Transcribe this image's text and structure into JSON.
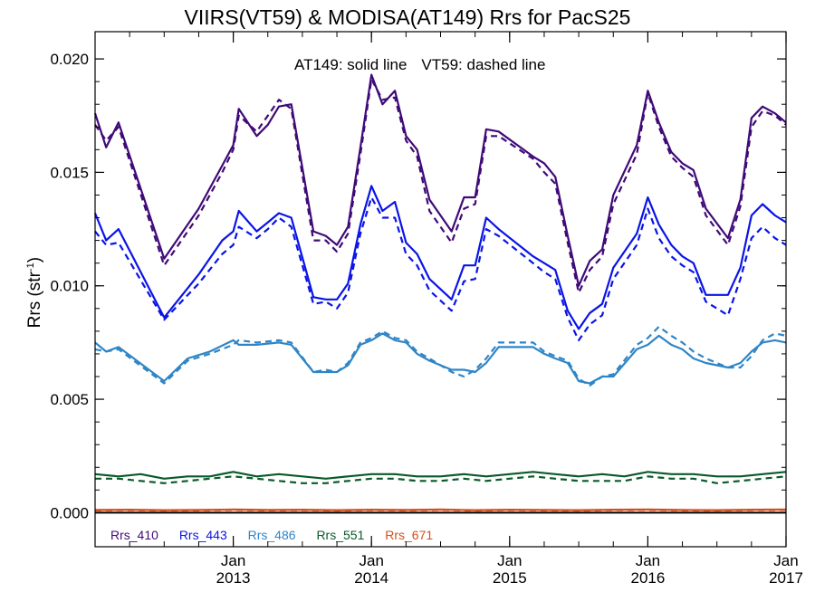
{
  "chart_data": {
    "type": "line",
    "title": "VIIRS(VT59) & MODISA(AT149)  Rrs for PacS25",
    "annotation": [
      "AT149: solid line",
      "VT59: dashed line"
    ],
    "ylabel": "Rrs (str",
    "ylabel_sup": "-1",
    "ylabel_close": ")",
    "ylim": [
      -0.0015,
      0.0212
    ],
    "xlim": [
      2012.0,
      2017.0
    ],
    "yticks": [
      0.0,
      0.005,
      0.01,
      0.015,
      0.02
    ],
    "ytick_labels": [
      "0.000",
      "0.005",
      "0.010",
      "0.015",
      "0.020"
    ],
    "xticks": [
      2013.0,
      2014.0,
      2015.0,
      2016.0,
      2017.0
    ],
    "xtick_labels": [
      [
        "Jan",
        "2013"
      ],
      [
        "Jan",
        "2014"
      ],
      [
        "Jan",
        "2015"
      ],
      [
        "Jan",
        "2016"
      ],
      [
        "Jan",
        "2017"
      ]
    ],
    "grid": false,
    "legend_position": "bottom-left",
    "series": [
      {
        "name": "Rrs_410",
        "color": "#3f0a78",
        "style": "solid",
        "x": [
          2012.0,
          2012.08,
          2012.17,
          2012.5,
          2012.75,
          2012.92,
          2013.0,
          2013.04,
          2013.17,
          2013.25,
          2013.33,
          2013.42,
          2013.58,
          2013.67,
          2013.75,
          2013.83,
          2013.92,
          2014.0,
          2014.08,
          2014.17,
          2014.25,
          2014.33,
          2014.42,
          2014.58,
          2014.67,
          2014.75,
          2014.83,
          2014.92,
          2015.17,
          2015.25,
          2015.33,
          2015.42,
          2015.5,
          2015.58,
          2015.67,
          2015.75,
          2015.92,
          2016.0,
          2016.08,
          2016.17,
          2016.25,
          2016.33,
          2016.42,
          2016.58,
          2016.67,
          2016.75,
          2016.83,
          2016.92,
          2017.0
        ],
        "y": [
          0.0176,
          0.0161,
          0.0172,
          0.0112,
          0.0134,
          0.0153,
          0.0162,
          0.0178,
          0.0166,
          0.0171,
          0.0179,
          0.018,
          0.0124,
          0.0122,
          0.0118,
          0.0126,
          0.0161,
          0.0193,
          0.018,
          0.0186,
          0.0166,
          0.016,
          0.0138,
          0.0124,
          0.0139,
          0.0139,
          0.0169,
          0.0168,
          0.0157,
          0.0154,
          0.0148,
          0.0122,
          0.01,
          0.0111,
          0.0116,
          0.014,
          0.0162,
          0.0186,
          0.0172,
          0.0159,
          0.0154,
          0.0151,
          0.0134,
          0.0121,
          0.0138,
          0.0174,
          0.0179,
          0.0176,
          0.0172
        ]
      },
      {
        "name": "Rrs_410_VT59",
        "color": "#3f0a78",
        "style": "dashed",
        "x": [
          2012.0,
          2012.08,
          2012.17,
          2012.5,
          2012.75,
          2012.92,
          2013.0,
          2013.04,
          2013.17,
          2013.25,
          2013.33,
          2013.42,
          2013.58,
          2013.67,
          2013.75,
          2013.83,
          2013.92,
          2014.0,
          2014.08,
          2014.17,
          2014.25,
          2014.33,
          2014.42,
          2014.58,
          2014.67,
          2014.75,
          2014.83,
          2014.92,
          2015.17,
          2015.25,
          2015.33,
          2015.42,
          2015.5,
          2015.58,
          2015.67,
          2015.75,
          2015.92,
          2016.0,
          2016.08,
          2016.17,
          2016.25,
          2016.33,
          2016.42,
          2016.58,
          2016.67,
          2016.75,
          2016.83,
          2016.92,
          2017.0
        ],
        "y": [
          0.0171,
          0.0164,
          0.017,
          0.0109,
          0.0131,
          0.015,
          0.016,
          0.0175,
          0.0168,
          0.0175,
          0.0182,
          0.0178,
          0.012,
          0.012,
          0.0115,
          0.0123,
          0.0158,
          0.0191,
          0.0182,
          0.0183,
          0.0164,
          0.0157,
          0.0133,
          0.0119,
          0.0134,
          0.0136,
          0.0166,
          0.0166,
          0.0156,
          0.015,
          0.0145,
          0.0119,
          0.0097,
          0.0107,
          0.0113,
          0.0136,
          0.0158,
          0.0185,
          0.017,
          0.0157,
          0.0152,
          0.0148,
          0.0131,
          0.0118,
          0.0135,
          0.017,
          0.0177,
          0.0175,
          0.0171
        ]
      },
      {
        "name": "Rrs_443",
        "color": "#0a14e6",
        "style": "solid",
        "x": [
          2012.0,
          2012.08,
          2012.17,
          2012.5,
          2012.75,
          2012.92,
          2013.0,
          2013.04,
          2013.17,
          2013.25,
          2013.33,
          2013.42,
          2013.58,
          2013.67,
          2013.75,
          2013.83,
          2013.92,
          2014.0,
          2014.08,
          2014.17,
          2014.25,
          2014.33,
          2014.42,
          2014.58,
          2014.67,
          2014.75,
          2014.83,
          2014.92,
          2015.17,
          2015.25,
          2015.33,
          2015.42,
          2015.5,
          2015.58,
          2015.67,
          2015.75,
          2015.92,
          2016.0,
          2016.08,
          2016.17,
          2016.25,
          2016.33,
          2016.42,
          2016.58,
          2016.67,
          2016.75,
          2016.83,
          2016.92,
          2017.0
        ],
        "y": [
          0.0132,
          0.012,
          0.0125,
          0.0086,
          0.0105,
          0.012,
          0.0124,
          0.0133,
          0.0124,
          0.0128,
          0.0132,
          0.013,
          0.0095,
          0.0094,
          0.0094,
          0.0101,
          0.0127,
          0.0144,
          0.0133,
          0.0137,
          0.0119,
          0.0114,
          0.0103,
          0.0094,
          0.0109,
          0.0109,
          0.013,
          0.0125,
          0.0113,
          0.011,
          0.0107,
          0.0089,
          0.0081,
          0.0088,
          0.0092,
          0.0108,
          0.0123,
          0.0139,
          0.0127,
          0.0118,
          0.0113,
          0.011,
          0.0096,
          0.0096,
          0.0108,
          0.0131,
          0.0136,
          0.0131,
          0.0128
        ]
      },
      {
        "name": "Rrs_443_VT59",
        "color": "#0a14e6",
        "style": "dashed",
        "x": [
          2012.0,
          2012.08,
          2012.17,
          2012.5,
          2012.75,
          2012.92,
          2013.0,
          2013.04,
          2013.17,
          2013.25,
          2013.33,
          2013.42,
          2013.58,
          2013.67,
          2013.75,
          2013.83,
          2013.92,
          2014.0,
          2014.08,
          2014.17,
          2014.25,
          2014.33,
          2014.42,
          2014.58,
          2014.67,
          2014.75,
          2014.83,
          2014.92,
          2015.17,
          2015.25,
          2015.33,
          2015.42,
          2015.5,
          2015.58,
          2015.67,
          2015.75,
          2015.92,
          2016.0,
          2016.08,
          2016.17,
          2016.25,
          2016.33,
          2016.42,
          2016.58,
          2016.67,
          2016.75,
          2016.83,
          2016.92,
          2017.0
        ],
        "y": [
          0.0124,
          0.0118,
          0.0119,
          0.0085,
          0.0101,
          0.0114,
          0.0118,
          0.0126,
          0.0121,
          0.0125,
          0.013,
          0.0126,
          0.0092,
          0.0093,
          0.009,
          0.0097,
          0.0123,
          0.0139,
          0.013,
          0.013,
          0.0114,
          0.0109,
          0.0098,
          0.0089,
          0.0102,
          0.0103,
          0.0125,
          0.0122,
          0.011,
          0.0106,
          0.0103,
          0.0086,
          0.0076,
          0.0083,
          0.0087,
          0.0103,
          0.0118,
          0.0134,
          0.0121,
          0.0113,
          0.0109,
          0.0106,
          0.0093,
          0.0087,
          0.0103,
          0.0121,
          0.0126,
          0.0121,
          0.0118
        ]
      },
      {
        "name": "Rrs_486",
        "color": "#2f85c6",
        "style": "solid",
        "x": [
          2012.0,
          2012.08,
          2012.17,
          2012.5,
          2012.67,
          2012.83,
          2013.0,
          2013.04,
          2013.17,
          2013.33,
          2013.42,
          2013.58,
          2013.67,
          2013.75,
          2013.83,
          2013.92,
          2014.0,
          2014.08,
          2014.17,
          2014.25,
          2014.33,
          2014.42,
          2014.58,
          2014.67,
          2014.75,
          2014.83,
          2014.92,
          2015.17,
          2015.25,
          2015.33,
          2015.42,
          2015.5,
          2015.58,
          2015.67,
          2015.75,
          2015.92,
          2016.0,
          2016.08,
          2016.17,
          2016.25,
          2016.33,
          2016.42,
          2016.58,
          2016.67,
          2016.75,
          2016.83,
          2016.92,
          2017.0
        ],
        "y": [
          0.0075,
          0.0071,
          0.0073,
          0.0058,
          0.0068,
          0.0071,
          0.0076,
          0.0074,
          0.0074,
          0.0075,
          0.0074,
          0.0062,
          0.0062,
          0.0062,
          0.0065,
          0.0074,
          0.0076,
          0.0079,
          0.0076,
          0.0075,
          0.007,
          0.0067,
          0.0063,
          0.0063,
          0.0062,
          0.0066,
          0.0073,
          0.0073,
          0.007,
          0.0068,
          0.0066,
          0.0058,
          0.0057,
          0.006,
          0.006,
          0.0072,
          0.0074,
          0.0078,
          0.0074,
          0.0072,
          0.0068,
          0.0066,
          0.0064,
          0.0066,
          0.0071,
          0.0075,
          0.0076,
          0.0075
        ]
      },
      {
        "name": "Rrs_486_VT59",
        "color": "#2f85c6",
        "style": "dashed",
        "x": [
          2012.0,
          2012.08,
          2012.17,
          2012.5,
          2012.67,
          2012.83,
          2013.0,
          2013.04,
          2013.17,
          2013.33,
          2013.42,
          2013.58,
          2013.67,
          2013.75,
          2013.83,
          2013.92,
          2014.0,
          2014.08,
          2014.17,
          2014.25,
          2014.33,
          2014.42,
          2014.58,
          2014.67,
          2014.75,
          2014.83,
          2014.92,
          2015.17,
          2015.25,
          2015.33,
          2015.42,
          2015.5,
          2015.58,
          2015.67,
          2015.75,
          2015.92,
          2016.0,
          2016.08,
          2016.17,
          2016.25,
          2016.33,
          2016.42,
          2016.58,
          2016.67,
          2016.75,
          2016.83,
          2016.92,
          2017.0
        ],
        "y": [
          0.0072,
          0.0071,
          0.0072,
          0.0057,
          0.0067,
          0.007,
          0.0074,
          0.0076,
          0.0075,
          0.0076,
          0.0075,
          0.0062,
          0.0063,
          0.0062,
          0.0066,
          0.0075,
          0.0077,
          0.008,
          0.0077,
          0.0076,
          0.0071,
          0.0068,
          0.0062,
          0.006,
          0.0063,
          0.0068,
          0.0075,
          0.0075,
          0.0071,
          0.0069,
          0.0067,
          0.0059,
          0.0056,
          0.006,
          0.0061,
          0.0074,
          0.0077,
          0.0082,
          0.0078,
          0.0075,
          0.0071,
          0.0068,
          0.0064,
          0.0064,
          0.0069,
          0.0076,
          0.0079,
          0.0078
        ]
      },
      {
        "name": "Rrs_551",
        "color": "#0a5a2a",
        "style": "solid",
        "x": [
          2012.0,
          2012.17,
          2012.33,
          2012.5,
          2012.67,
          2012.83,
          2013.0,
          2013.17,
          2013.33,
          2013.5,
          2013.67,
          2013.83,
          2014.0,
          2014.17,
          2014.33,
          2014.5,
          2014.67,
          2014.83,
          2015.0,
          2015.17,
          2015.33,
          2015.5,
          2015.67,
          2015.83,
          2016.0,
          2016.17,
          2016.33,
          2016.5,
          2016.67,
          2016.83,
          2017.0
        ],
        "y": [
          0.0017,
          0.0016,
          0.0017,
          0.0015,
          0.0016,
          0.0016,
          0.0018,
          0.0016,
          0.0017,
          0.0016,
          0.0015,
          0.0016,
          0.0017,
          0.0017,
          0.0016,
          0.0016,
          0.0017,
          0.0016,
          0.0017,
          0.0018,
          0.0017,
          0.0016,
          0.0017,
          0.0016,
          0.0018,
          0.0017,
          0.0017,
          0.0016,
          0.0016,
          0.0017,
          0.0018
        ]
      },
      {
        "name": "Rrs_551_VT59",
        "color": "#0a5a2a",
        "style": "dashed",
        "x": [
          2012.0,
          2012.17,
          2012.33,
          2012.5,
          2012.67,
          2012.83,
          2013.0,
          2013.17,
          2013.33,
          2013.5,
          2013.67,
          2013.83,
          2014.0,
          2014.17,
          2014.33,
          2014.5,
          2014.67,
          2014.83,
          2015.0,
          2015.17,
          2015.33,
          2015.5,
          2015.67,
          2015.83,
          2016.0,
          2016.17,
          2016.33,
          2016.5,
          2016.67,
          2016.83,
          2017.0
        ],
        "y": [
          0.0015,
          0.0015,
          0.0014,
          0.0013,
          0.0014,
          0.0015,
          0.0016,
          0.0015,
          0.0014,
          0.0013,
          0.0013,
          0.0014,
          0.0015,
          0.0015,
          0.0014,
          0.0014,
          0.0015,
          0.0014,
          0.0015,
          0.0016,
          0.0015,
          0.0014,
          0.0014,
          0.0014,
          0.0016,
          0.0015,
          0.0015,
          0.0013,
          0.0014,
          0.0015,
          0.0016
        ]
      },
      {
        "name": "Rrs_671",
        "color": "#d2501e",
        "style": "solid",
        "x": [
          2012.0,
          2012.25,
          2012.5,
          2012.75,
          2013.0,
          2013.25,
          2013.5,
          2013.75,
          2014.0,
          2014.25,
          2014.5,
          2014.75,
          2015.0,
          2015.25,
          2015.5,
          2015.75,
          2016.0,
          2016.25,
          2016.5,
          2016.75,
          2017.0
        ],
        "y": [
          0.00012,
          0.00013,
          0.00011,
          0.00012,
          0.00014,
          0.00012,
          0.00013,
          0.00011,
          0.00013,
          0.00012,
          0.00014,
          0.00011,
          0.00013,
          0.00012,
          0.00011,
          0.00013,
          0.00014,
          0.00012,
          0.00011,
          0.00013,
          0.00014
        ]
      },
      {
        "name": "Rrs_671_VT59",
        "color": "#d2501e",
        "style": "dashed",
        "x": [
          2012.0,
          2012.25,
          2012.5,
          2012.75,
          2013.0,
          2013.25,
          2013.5,
          2013.75,
          2014.0,
          2014.25,
          2014.5,
          2014.75,
          2015.0,
          2015.25,
          2015.5,
          2015.75,
          2016.0,
          2016.25,
          2016.5,
          2016.75,
          2017.0
        ],
        "y": [
          0.0001,
          0.00011,
          9e-05,
          0.0001,
          0.00012,
          0.0001,
          0.00011,
          9e-05,
          0.00011,
          0.0001,
          0.00012,
          9e-05,
          0.00011,
          0.0001,
          9e-05,
          0.00011,
          0.00012,
          0.0001,
          9e-05,
          0.00011,
          0.00012
        ]
      }
    ],
    "legend": [
      {
        "label": "Rrs_410",
        "color": "#3f0a78"
      },
      {
        "label": "Rrs_443",
        "color": "#0a14e6"
      },
      {
        "label": "Rrs_486",
        "color": "#2f85c6"
      },
      {
        "label": "Rrs_551",
        "color": "#0a5a2a"
      },
      {
        "label": "Rrs_671",
        "color": "#d2501e"
      }
    ]
  }
}
